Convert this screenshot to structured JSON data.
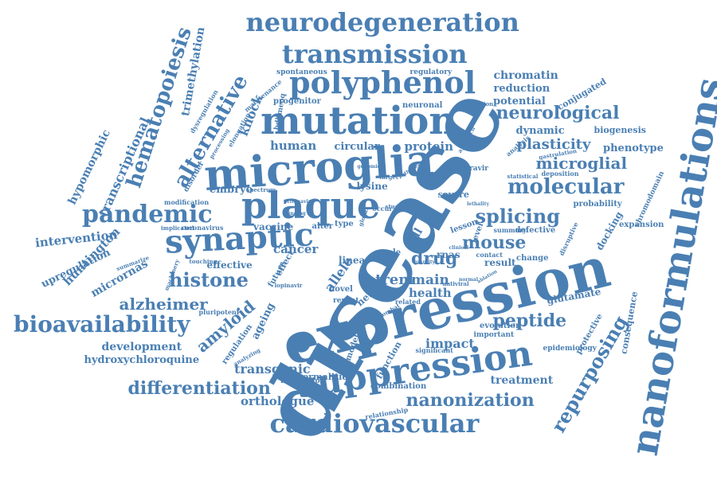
{
  "color": "#4a7fb3",
  "words": [
    "disease",
    "expression",
    "nanoformulations",
    "microglia",
    "mutation",
    "plaque",
    "synaptic",
    "polyphenol",
    "transmission",
    "neurodegeneration",
    "suppression",
    "cardiovascular",
    "bioavailability",
    "pandemic",
    "alternative",
    "hematopoiesis",
    "trimethylation",
    "repurposing",
    "molecular",
    "neurological",
    "splicing",
    "mouse",
    "histone",
    "alzheimer",
    "amyloid",
    "differentiation",
    "nanonization",
    "peptide",
    "transcriptional",
    "hypomorphic",
    "knock",
    "microglial",
    "plasticity",
    "phenotype",
    "chromatin",
    "reduction",
    "potential",
    "conjugated",
    "dynamic",
    "biogenesis",
    "human",
    "circular",
    "protein",
    "cancer",
    "drug",
    "trem",
    "main",
    "health",
    "impact",
    "treatment",
    "orthologue",
    "transgenic",
    "development",
    "hydroxychloroquine",
    "intervention",
    "upregulation",
    "huntington",
    "micrornas",
    "embryo",
    "lysine",
    "vaccine",
    "effective",
    "ageing",
    "regulation",
    "glutamate",
    "protective",
    "consequence",
    "epidemiology",
    "docking",
    "expansion",
    "probability",
    "chromodomain",
    "defective",
    "summary",
    "evolution",
    "combination",
    "relationship",
    "spontaneous",
    "regulatory",
    "progenitor",
    "neuronal",
    "alteration",
    "dysregulation",
    "elongation",
    "maintenance",
    "processing",
    "disorder",
    "modification",
    "coronavirus",
    "implicated",
    "favipiravir",
    "deposition",
    "statistical",
    "gastrulation",
    "analysis",
    "neural",
    "allele",
    "cell",
    "rnas",
    "linear",
    "result",
    "change",
    "level",
    "lesson",
    "model",
    "abnormalities",
    "function",
    "interaction",
    "significant",
    "important",
    "novel",
    "repeat",
    "related",
    "role",
    "alter",
    "type",
    "effect",
    "future",
    "severe",
    "stage",
    "study",
    "contact",
    "pluripotent",
    "lopinavir",
    "ritonavir",
    "spectrum",
    "machinery",
    "summarize",
    "touching",
    "analyzing",
    "combat",
    "antiviral",
    "normal",
    "ablation",
    "approach",
    "occur",
    "global",
    "target",
    "bdhmeoq",
    "genomic",
    "pathogen",
    "disruptive",
    "quantity",
    "seven",
    "lethality",
    "clinical",
    "finding"
  ]
}
